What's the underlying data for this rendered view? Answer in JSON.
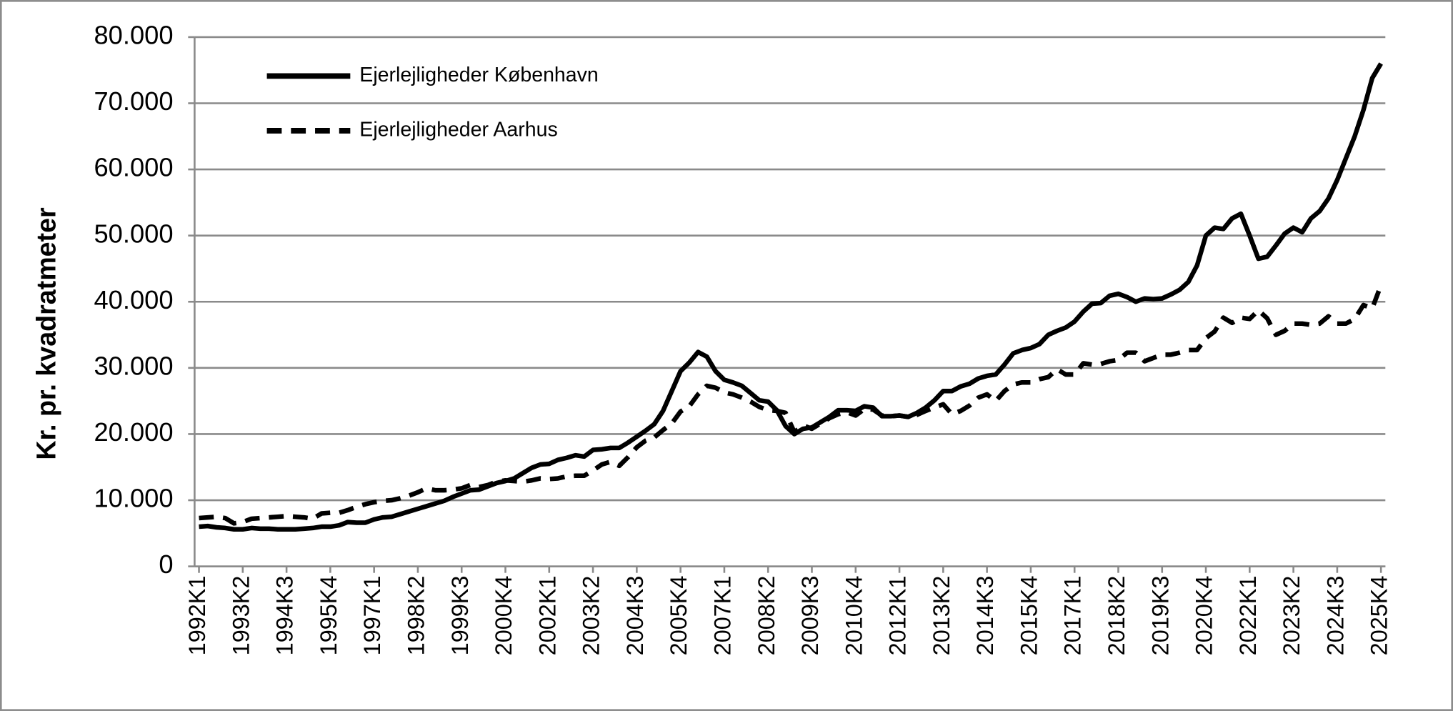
{
  "chart_data": {
    "type": "line",
    "y_label": "Kr. pr. kvadratmeter",
    "categories": [
      "1992K1",
      null,
      null,
      null,
      null,
      "1993K2",
      null,
      null,
      null,
      null,
      "1994K3",
      null,
      null,
      null,
      null,
      "1995K4",
      null,
      null,
      null,
      null,
      "1997K1",
      null,
      null,
      null,
      null,
      "1998K2",
      null,
      null,
      null,
      null,
      "1999K3",
      null,
      null,
      null,
      null,
      "2000K4",
      null,
      null,
      null,
      null,
      "2002K1",
      null,
      null,
      null,
      null,
      "2003K2",
      null,
      null,
      null,
      null,
      "2004K3",
      null,
      null,
      null,
      null,
      "2005K4",
      null,
      null,
      null,
      null,
      "2007K1",
      null,
      null,
      null,
      null,
      "2008K2",
      null,
      null,
      null,
      null,
      "2009K3",
      null,
      null,
      null,
      null,
      "2010K4",
      null,
      null,
      null,
      null,
      "2012K1",
      null,
      null,
      null,
      null,
      "2013K2",
      null,
      null,
      null,
      null,
      "2014K3",
      null,
      null,
      null,
      null,
      "2015K4",
      null,
      null,
      null,
      null,
      "2017K1",
      null,
      null,
      null,
      null,
      "2018K2",
      null,
      null,
      null,
      null,
      "2019K3",
      null,
      null,
      null,
      null,
      "2020K4",
      null,
      null,
      null,
      null,
      "2022K1",
      null,
      null,
      null,
      null,
      "2023K2",
      null,
      null,
      null,
      null,
      "2024K3",
      null,
      null,
      null,
      null,
      "2025K4"
    ],
    "series": [
      {
        "name": "Ejerlejligheder København",
        "color": "#000000",
        "dash": false,
        "values": [
          6000,
          6100,
          5900,
          5800,
          5600,
          5600,
          5800,
          5700,
          5700,
          5600,
          5600,
          5600,
          5700,
          5800,
          6000,
          6000,
          6200,
          6700,
          6600,
          6600,
          7100,
          7400,
          7500,
          7900,
          8300,
          8700,
          9100,
          9500,
          9900,
          10500,
          11000,
          11500,
          11600,
          12100,
          12600,
          12900,
          13300,
          14100,
          14900,
          15400,
          15500,
          16100,
          16400,
          16800,
          16600,
          17600,
          17700,
          17900,
          17900,
          18700,
          19600,
          20500,
          21500,
          23500,
          26500,
          29500,
          30800,
          32400,
          31700,
          29500,
          28200,
          27800,
          27300,
          26200,
          25100,
          24900,
          23600,
          21200,
          20000,
          20800,
          21000,
          21800,
          22600,
          23600,
          23600,
          23500,
          24200,
          24000,
          22700,
          22700,
          22800,
          22600,
          23200,
          24000,
          25100,
          26500,
          26500,
          27200,
          27600,
          28400,
          28800,
          29000,
          30500,
          32200,
          32700,
          33000,
          33600,
          35000,
          35600,
          36100,
          37000,
          38500,
          39700,
          39800,
          40900,
          41200,
          40700,
          40000,
          40500,
          40400,
          40500,
          41100,
          41800,
          43000,
          45500,
          50000,
          51200,
          51000,
          52600,
          53300,
          50000,
          46500,
          46800,
          48500,
          50300,
          51200,
          50500,
          52600,
          53700,
          55600,
          58400,
          61700,
          65000,
          69000,
          73800,
          76000
        ]
      },
      {
        "name": "Ejerlejligheder Aarhus",
        "color": "#000000",
        "dash": true,
        "values": [
          7300,
          7400,
          7500,
          7300,
          6500,
          6700,
          7200,
          7300,
          7400,
          7500,
          7600,
          7500,
          7400,
          7200,
          8000,
          8100,
          8100,
          8500,
          9000,
          9400,
          9700,
          9900,
          10000,
          10300,
          10700,
          11200,
          11800,
          11500,
          11500,
          11600,
          11800,
          12300,
          12000,
          12300,
          12800,
          13000,
          12900,
          12800,
          13000,
          13300,
          13200,
          13300,
          13600,
          13700,
          13700,
          14500,
          15400,
          15800,
          15200,
          16500,
          18000,
          19000,
          19500,
          20600,
          21600,
          23400,
          24200,
          26000,
          27300,
          27000,
          26300,
          26000,
          25500,
          24900,
          24100,
          23600,
          23500,
          23200,
          20300,
          21300,
          20800,
          21600,
          22400,
          23000,
          23300,
          22800,
          23800,
          23700,
          22800,
          22700,
          22800,
          22600,
          22900,
          23500,
          24000,
          24500,
          23000,
          23500,
          24300,
          25500,
          26000,
          25000,
          26500,
          27500,
          27800,
          27800,
          28300,
          28600,
          29800,
          29000,
          29000,
          30700,
          30500,
          30600,
          31000,
          31200,
          32300,
          32300,
          31000,
          31500,
          32000,
          32000,
          32300,
          32700,
          32700,
          34500,
          35500,
          37600,
          36800,
          37600,
          37400,
          38700,
          37500,
          35000,
          35600,
          36700,
          36700,
          36500,
          36700,
          37800,
          36700,
          36700,
          37400,
          39500,
          39000,
          42500
        ]
      }
    ],
    "ylim": [
      0,
      80000
    ],
    "yticks": [
      0,
      {
        "value": 10000,
        "label": "10.000"
      },
      {
        "value": 20000,
        "label": "20.000"
      },
      {
        "value": 30000,
        "label": "30.000"
      },
      {
        "value": 40000,
        "label": "40.000"
      },
      {
        "value": 50000,
        "label": "50.000"
      },
      {
        "value": 60000,
        "label": "60.000"
      },
      {
        "value": 70000,
        "label": "70.000"
      },
      {
        "value": 80000,
        "label": "80.000"
      }
    ],
    "grid": true,
    "legend": "top-left"
  }
}
